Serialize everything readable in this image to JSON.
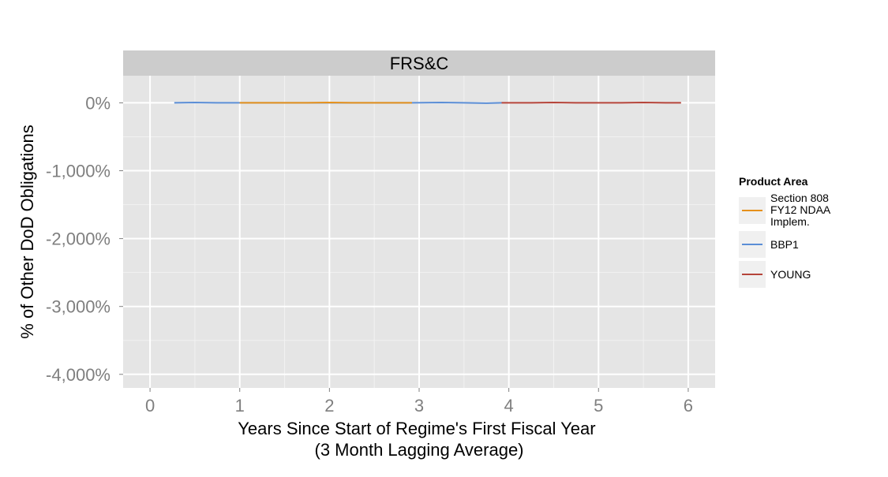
{
  "chart_data": {
    "type": "line",
    "facet_label": "FRS&C",
    "xlabel": "Years Since Start of Regime's First Fiscal Year\n(3 Month Lagging Average)",
    "ylabel": "% of Other DoD Obligations",
    "xlim": [
      -0.3,
      6.3
    ],
    "ylim": [
      -4200,
      400
    ],
    "x_ticks": [
      0,
      1,
      2,
      3,
      4,
      5,
      6
    ],
    "x_tick_labels": [
      "0",
      "1",
      "2",
      "3",
      "4",
      "5",
      "6"
    ],
    "y_ticks": [
      0,
      -1000,
      -2000,
      -3000,
      -4000
    ],
    "y_tick_labels": [
      "0%",
      "-1,000%",
      "-2,000%",
      "-3,000%",
      "-4,000%"
    ],
    "grid": true,
    "legend_title": "Product Area",
    "legend_position": "right",
    "series": [
      {
        "name": "Section 808 FY12 NDAA Implem.",
        "color": "#E6901A",
        "x": [
          1.0,
          1.25,
          1.5,
          1.75,
          2.0,
          2.25,
          2.5,
          2.75,
          2.92
        ],
        "y": [
          0,
          0,
          0,
          0,
          5,
          0,
          0,
          0,
          0
        ]
      },
      {
        "name": "BBP1",
        "color": "#5B8ED6",
        "x": [
          0.27,
          0.5,
          0.75,
          1.0,
          2.92,
          3.25,
          3.5,
          3.75,
          3.92
        ],
        "y": [
          0,
          5,
          0,
          0,
          0,
          5,
          0,
          -5,
          0
        ]
      },
      {
        "name": "YOUNG",
        "color": "#B5443A",
        "x": [
          3.92,
          4.25,
          4.5,
          4.75,
          5.0,
          5.25,
          5.5,
          5.75,
          5.92
        ],
        "y": [
          0,
          0,
          5,
          0,
          0,
          0,
          5,
          0,
          0
        ]
      }
    ]
  }
}
